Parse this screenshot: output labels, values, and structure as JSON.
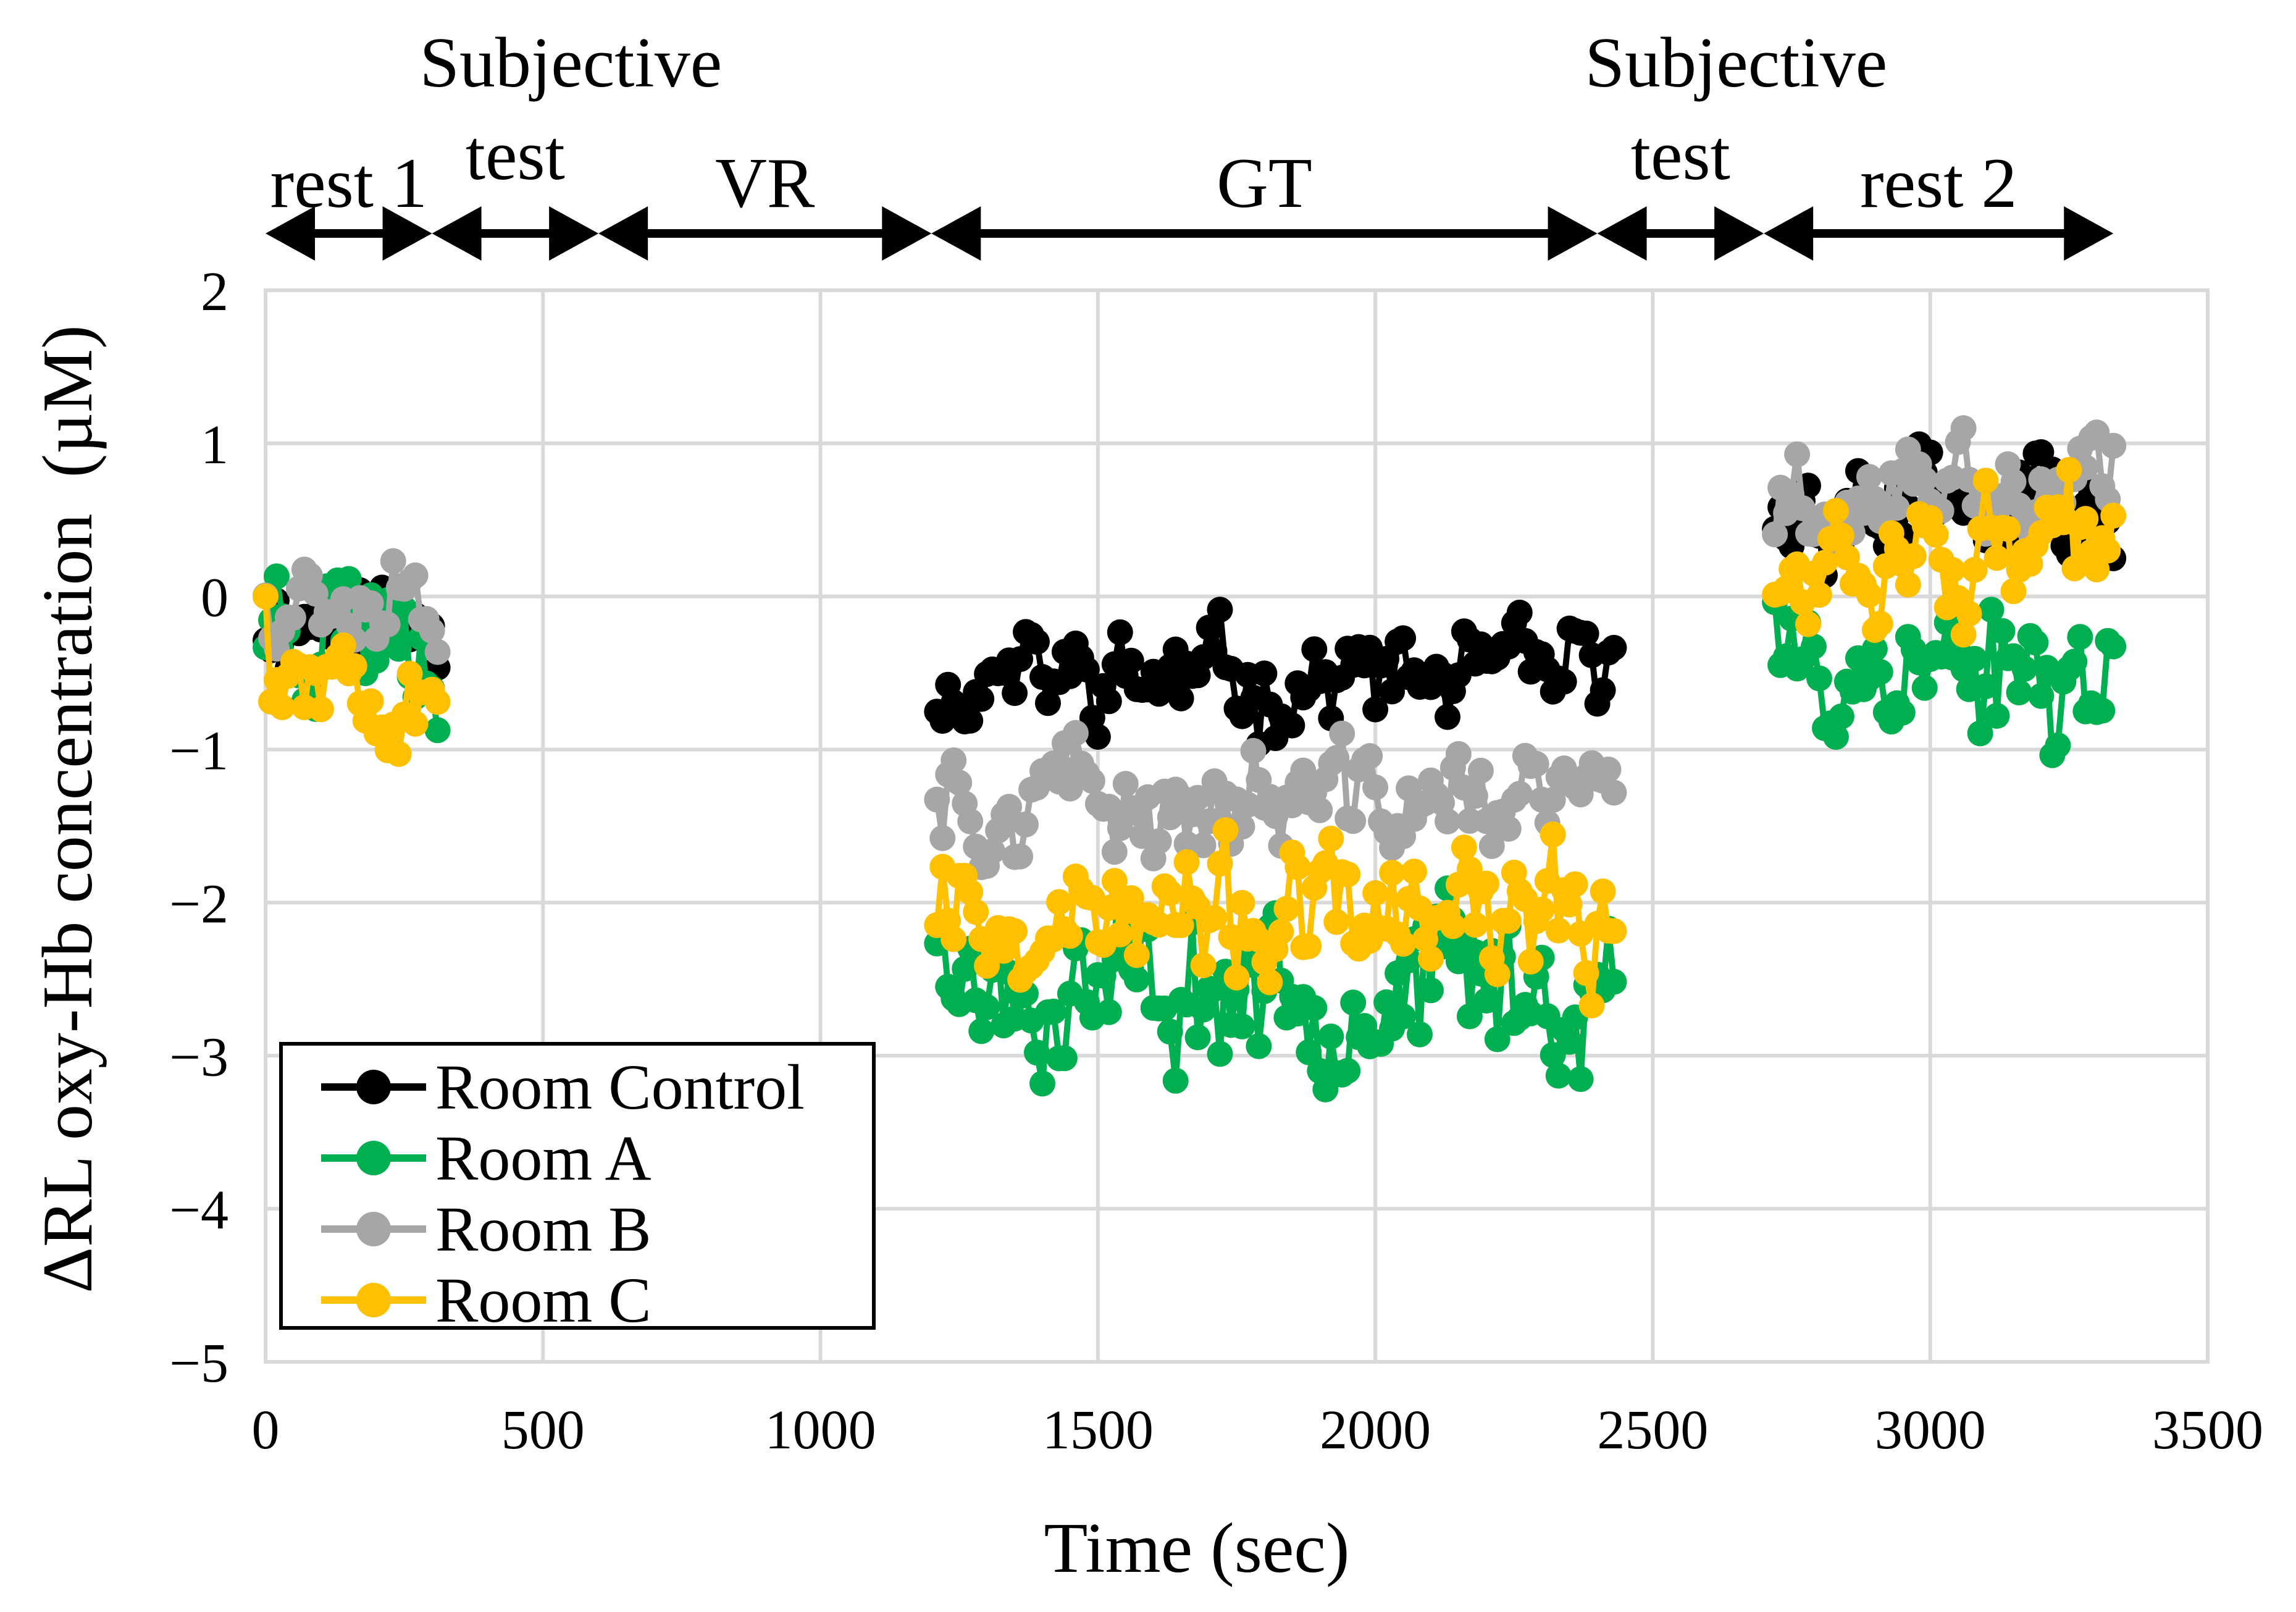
{
  "chart_data": {
    "type": "line",
    "xlabel": "Time (sec)",
    "ylabel": "ΔRL oxy-Hb concentration  (µM)",
    "xlim": [
      0,
      3500
    ],
    "ylim": [
      -5,
      2
    ],
    "x_ticks": [
      0,
      500,
      1000,
      1500,
      2000,
      2500,
      3000,
      3500
    ],
    "x_tick_labels": [
      "0",
      "500",
      "1000",
      "1500",
      "2000",
      "2500",
      "3000",
      "3500"
    ],
    "y_ticks": [
      2,
      1,
      0,
      -1,
      -2,
      -3,
      -4,
      -5
    ],
    "y_tick_labels": [
      "2",
      "1",
      "0",
      "−1",
      "−2",
      "−3",
      "−4",
      "−5"
    ],
    "grid": true,
    "legend_position": "bottom-left",
    "phases": [
      {
        "label": "rest 1",
        "start": 0,
        "end": 300
      },
      {
        "label": "Subjective",
        "label2": "test",
        "start": 300,
        "end": 600
      },
      {
        "label": "VR",
        "start": 600,
        "end": 1200
      },
      {
        "label": "GT",
        "start": 1200,
        "end": 2400
      },
      {
        "label": "Subjective",
        "label2": "test",
        "start": 2400,
        "end": 2700
      },
      {
        "label": "rest 2",
        "start": 2700,
        "end": 3330
      }
    ],
    "segments": [
      {
        "start": 0,
        "end": 310,
        "step": 10
      },
      {
        "start": 1210,
        "end": 2430,
        "step": 10
      },
      {
        "start": 2720,
        "end": 3330,
        "step": 10
      }
    ],
    "series": [
      {
        "name": "Room Control",
        "color": "#000000",
        "seg_means": [
          -0.12,
          -0.55,
          0.55
        ],
        "amplitude": 0.28,
        "seed": 11
      },
      {
        "name": "Room A",
        "color": "#00b050",
        "seg_means": [
          -0.1,
          -2.55,
          -0.45
        ],
        "amplitude": 0.45,
        "seed": 23
      },
      {
        "name": "Room B",
        "color": "#a6a6a6",
        "seg_means": [
          0.1,
          -1.35,
          0.65
        ],
        "amplitude": 0.32,
        "seed": 37
      },
      {
        "name": "Room C",
        "color": "#ffc000",
        "seg_means": [
          -0.4,
          -2.15,
          0.25
        ],
        "amplitude": 0.38,
        "seed": 53
      }
    ]
  }
}
